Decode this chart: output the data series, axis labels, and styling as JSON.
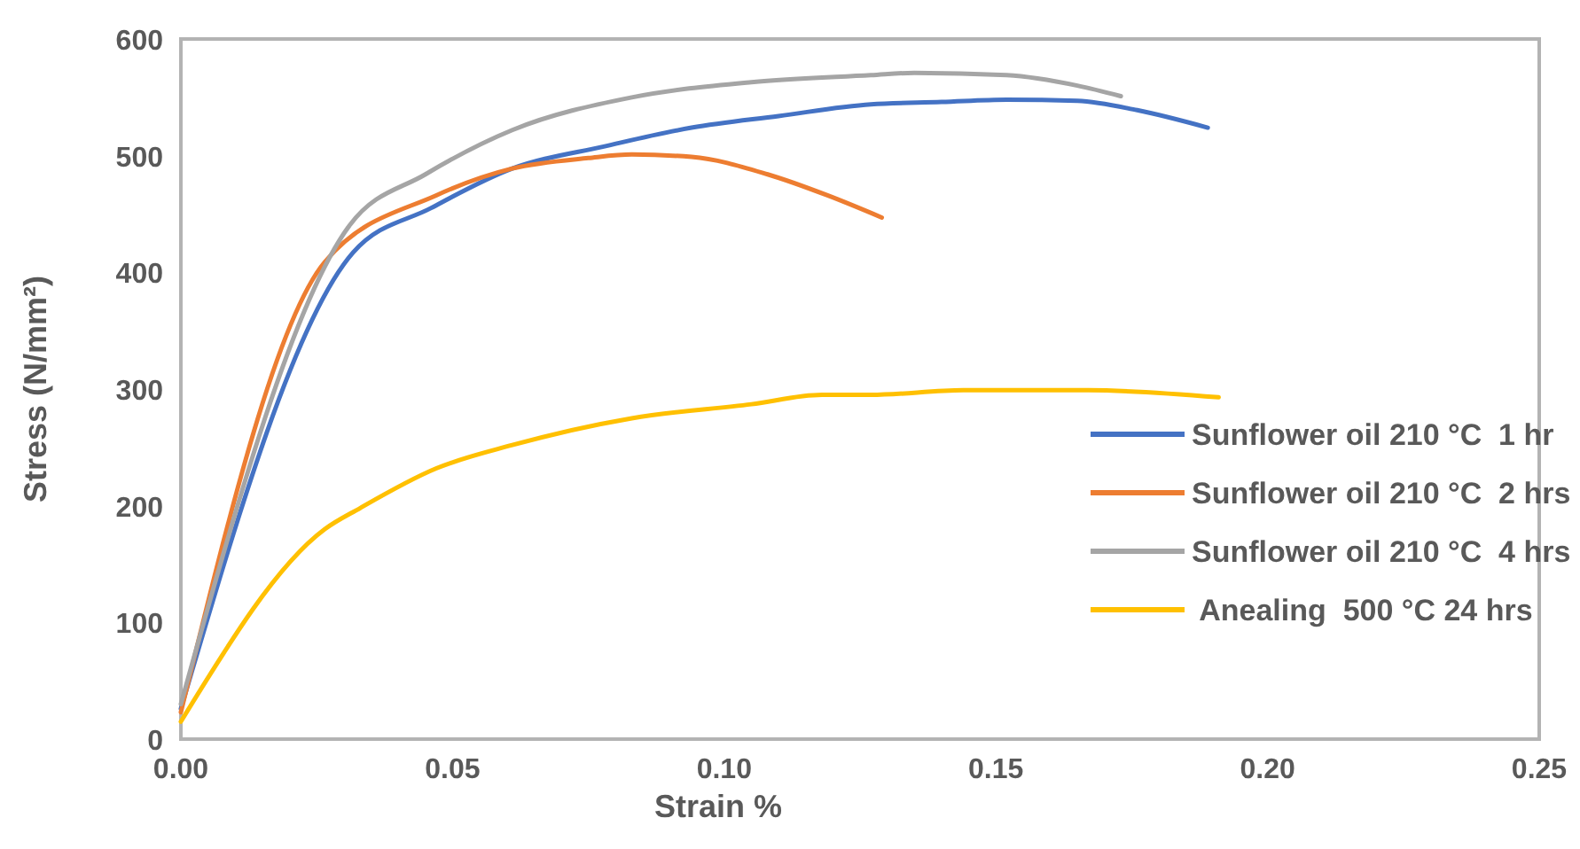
{
  "chart_data": {
    "type": "line",
    "xlabel": "Strain %",
    "ylabel": "Stress (N/mm²)",
    "xlim": [
      0,
      0.25
    ],
    "ylim": [
      0,
      600
    ],
    "xticks": [
      {
        "value": 0,
        "label": "0.00"
      },
      {
        "value": 0.05,
        "label": "0.05"
      },
      {
        "value": 0.1,
        "label": "0.10"
      },
      {
        "value": 0.15,
        "label": "0.15"
      },
      {
        "value": 0.2,
        "label": "0.20"
      },
      {
        "value": 0.25,
        "label": "0.25"
      }
    ],
    "yticks": [
      0,
      100,
      200,
      300,
      400,
      500,
      600
    ],
    "grid": false,
    "legend": "right",
    "marker": "none",
    "line_style": "solid",
    "series": [
      {
        "name": "Sunflower oil 210 °C  1 hr",
        "color": "#4472c4",
        "x": [
          0,
          0.0317,
          0.046,
          0.061,
          0.078,
          0.094,
          0.11,
          0.127,
          0.14,
          0.152,
          0.165,
          0.176,
          0.189
        ],
        "values": [
          26,
          417,
          455,
          489,
          508,
          524,
          534,
          544,
          546,
          548,
          547,
          539,
          524
        ]
      },
      {
        "name": "Sunflower oil 210 °C  2 hrs",
        "color": "#ed7d31",
        "x": [
          0,
          0.0265,
          0.047,
          0.061,
          0.075,
          0.083,
          0.094,
          0.108,
          0.119,
          0.129
        ],
        "values": [
          23,
          409,
          466,
          489,
          498,
          501,
          499,
          484,
          466,
          447
        ]
      },
      {
        "name": "Sunflower oil 210 °C  4 hrs",
        "color": "#a5a5a5",
        "x": [
          0,
          0.031,
          0.045,
          0.061,
          0.083,
          0.105,
          0.127,
          0.135,
          0.152,
          0.165,
          0.173
        ],
        "values": [
          30,
          440,
          484,
          522,
          550,
          563,
          569,
          571,
          569,
          560,
          551
        ]
      },
      {
        "name": " Anealing  500 °C 24 hrs",
        "color": "#ffc000",
        "x": [
          0,
          0.0265,
          0.033,
          0.047,
          0.061,
          0.083,
          0.105,
          0.118,
          0.127,
          0.144,
          0.167,
          0.191
        ],
        "values": [
          15,
          180,
          198,
          232,
          252,
          275,
          287,
          295,
          295,
          299,
          299,
          293
        ]
      }
    ]
  }
}
